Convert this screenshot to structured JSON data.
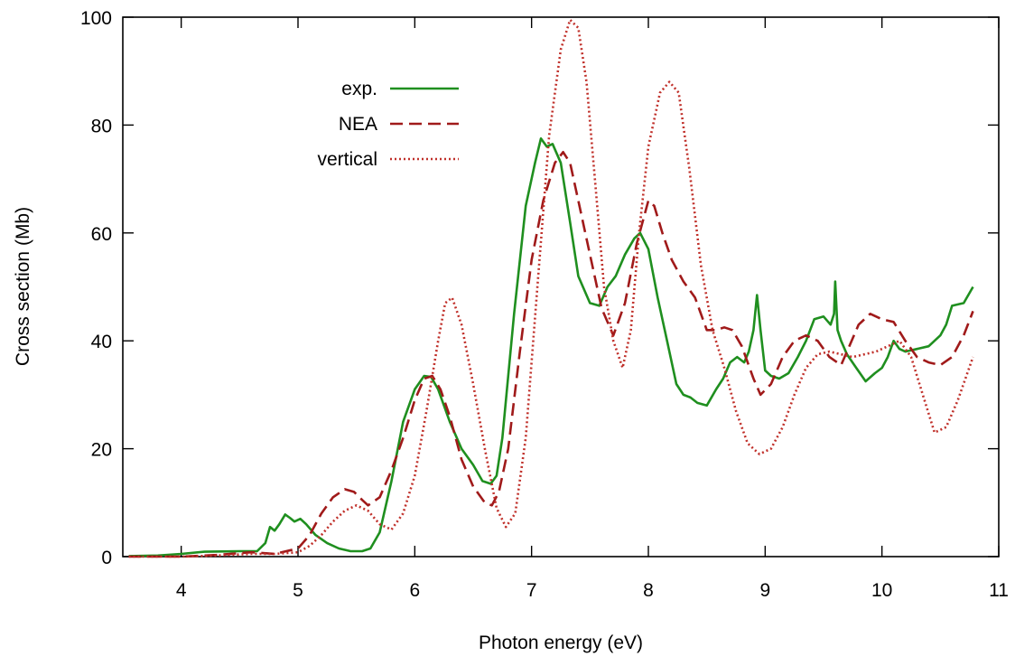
{
  "chart_data": {
    "type": "line",
    "title": "",
    "xlabel": "Photon energy (eV)",
    "ylabel": "Cross section (Mb)",
    "xlim": [
      3.5,
      11
    ],
    "ylim": [
      0,
      100
    ],
    "x_ticks": [
      "4",
      "5",
      "6",
      "7",
      "8",
      "9",
      "10",
      "11"
    ],
    "y_ticks": [
      "0",
      "20",
      "40",
      "60",
      "80",
      "100"
    ],
    "grid": false,
    "legend_position": "top-left",
    "series": [
      {
        "name": "exp.",
        "color": "#1f8f1f",
        "dash": "solid",
        "x": [
          3.55,
          3.8,
          4.0,
          4.2,
          4.5,
          4.65,
          4.72,
          4.76,
          4.8,
          4.84,
          4.89,
          4.93,
          4.97,
          5.02,
          5.07,
          5.15,
          5.25,
          5.35,
          5.45,
          5.55,
          5.62,
          5.7,
          5.8,
          5.9,
          6.0,
          6.08,
          6.14,
          6.2,
          6.3,
          6.4,
          6.5,
          6.58,
          6.65,
          6.7,
          6.75,
          6.85,
          6.95,
          7.03,
          7.08,
          7.13,
          7.18,
          7.25,
          7.33,
          7.4,
          7.5,
          7.58,
          7.65,
          7.72,
          7.8,
          7.88,
          7.93,
          8.0,
          8.08,
          8.16,
          8.24,
          8.3,
          8.36,
          8.42,
          8.5,
          8.58,
          8.64,
          8.7,
          8.76,
          8.82,
          8.86,
          8.9,
          8.93,
          8.96,
          9.0,
          9.05,
          9.12,
          9.2,
          9.28,
          9.35,
          9.42,
          9.5,
          9.56,
          9.59,
          9.6,
          9.62,
          9.65,
          9.7,
          9.78,
          9.86,
          9.94,
          10.0,
          10.05,
          10.1,
          10.15,
          10.2,
          10.3,
          10.4,
          10.5,
          10.55,
          10.6,
          10.7,
          10.78
        ],
        "y": [
          0.1,
          0.2,
          0.5,
          0.9,
          1.0,
          1.0,
          2.5,
          5.5,
          4.8,
          6.0,
          7.8,
          7.2,
          6.5,
          7.0,
          6.0,
          4.0,
          2.5,
          1.5,
          1.0,
          1.0,
          1.5,
          4.5,
          14.0,
          25.0,
          31.0,
          33.5,
          33.3,
          31.0,
          25.0,
          20.0,
          17.0,
          14.0,
          13.5,
          15.0,
          22.0,
          45.0,
          65.0,
          73.0,
          77.5,
          76.0,
          76.5,
          73.0,
          62.0,
          52.0,
          47.0,
          46.5,
          50.0,
          52.0,
          56.0,
          59.0,
          60.0,
          57.0,
          48.0,
          40.0,
          32.0,
          30.0,
          29.5,
          28.5,
          28.0,
          31.0,
          33.0,
          36.0,
          37.0,
          36.0,
          38.0,
          42.0,
          48.5,
          42.0,
          34.5,
          33.5,
          33.0,
          34.0,
          37.0,
          40.0,
          44.0,
          44.5,
          43.0,
          45.0,
          51.0,
          42.0,
          40.0,
          37.5,
          35.0,
          32.5,
          34.0,
          35.0,
          37.0,
          40.0,
          38.5,
          38.0,
          38.5,
          39.0,
          41.0,
          43.0,
          46.5,
          47.0,
          50.0
        ]
      },
      {
        "name": "NEA",
        "color": "#a01a1a",
        "dash": "long-dash",
        "x": [
          3.55,
          3.8,
          4.0,
          4.3,
          4.6,
          4.8,
          5.0,
          5.1,
          5.2,
          5.3,
          5.4,
          5.48,
          5.55,
          5.6,
          5.7,
          5.8,
          5.9,
          6.0,
          6.08,
          6.15,
          6.22,
          6.3,
          6.4,
          6.5,
          6.6,
          6.66,
          6.72,
          6.8,
          6.9,
          7.0,
          7.1,
          7.2,
          7.27,
          7.33,
          7.4,
          7.5,
          7.6,
          7.7,
          7.8,
          7.9,
          8.0,
          8.05,
          8.12,
          8.2,
          8.3,
          8.4,
          8.5,
          8.58,
          8.65,
          8.72,
          8.8,
          8.9,
          8.96,
          9.05,
          9.15,
          9.25,
          9.35,
          9.45,
          9.55,
          9.65,
          9.72,
          9.8,
          9.9,
          10.0,
          10.1,
          10.2,
          10.3,
          10.4,
          10.5,
          10.6,
          10.7,
          10.78
        ],
        "y": [
          0.0,
          0.0,
          0.0,
          0.3,
          0.8,
          0.5,
          1.5,
          4.0,
          8.0,
          11.0,
          12.5,
          12.0,
          10.5,
          9.5,
          11.0,
          16.0,
          22.0,
          29.0,
          33.0,
          33.5,
          31.0,
          26.0,
          18.0,
          13.0,
          10.0,
          9.5,
          12.0,
          20.0,
          38.0,
          55.0,
          66.0,
          73.0,
          75.0,
          73.0,
          66.0,
          56.0,
          46.0,
          41.0,
          47.0,
          58.0,
          66.0,
          65.0,
          60.0,
          55.0,
          51.0,
          48.0,
          42.0,
          42.0,
          42.5,
          42.0,
          39.0,
          33.0,
          30.0,
          32.0,
          37.0,
          40.0,
          41.0,
          40.0,
          37.0,
          35.5,
          39.0,
          43.0,
          45.0,
          44.0,
          43.5,
          40.0,
          37.0,
          36.0,
          35.5,
          37.0,
          41.0,
          45.5
        ]
      },
      {
        "name": "vertical",
        "color": "#c0302a",
        "dash": "dotted",
        "x": [
          3.55,
          3.8,
          4.0,
          4.3,
          4.6,
          4.8,
          5.0,
          5.1,
          5.2,
          5.3,
          5.4,
          5.5,
          5.6,
          5.7,
          5.8,
          5.9,
          6.0,
          6.1,
          6.2,
          6.26,
          6.32,
          6.4,
          6.5,
          6.6,
          6.7,
          6.78,
          6.86,
          6.95,
          7.05,
          7.15,
          7.25,
          7.33,
          7.4,
          7.47,
          7.55,
          7.62,
          7.7,
          7.78,
          7.85,
          7.92,
          8.0,
          8.1,
          8.18,
          8.26,
          8.35,
          8.45,
          8.55,
          8.65,
          8.75,
          8.85,
          8.95,
          9.05,
          9.15,
          9.25,
          9.35,
          9.45,
          9.55,
          9.65,
          9.75,
          9.85,
          9.95,
          10.05,
          10.15,
          10.25,
          10.35,
          10.45,
          10.55,
          10.65,
          10.78
        ],
        "y": [
          0.0,
          0.0,
          0.0,
          0.2,
          0.5,
          0.5,
          0.8,
          2.0,
          4.0,
          6.5,
          8.5,
          9.5,
          8.5,
          6.0,
          5.0,
          8.0,
          15.0,
          27.0,
          40.0,
          47.0,
          48.0,
          43.0,
          32.0,
          20.0,
          9.0,
          5.5,
          8.0,
          22.0,
          50.0,
          78.0,
          94.0,
          99.5,
          98.0,
          88.0,
          68.0,
          50.0,
          40.0,
          35.0,
          42.0,
          60.0,
          76.0,
          86.0,
          88.0,
          86.0,
          72.0,
          54.0,
          42.0,
          35.0,
          27.0,
          21.0,
          19.0,
          20.0,
          24.0,
          30.0,
          35.0,
          37.5,
          38.0,
          37.5,
          37.0,
          37.5,
          38.0,
          39.0,
          40.0,
          37.0,
          30.0,
          23.0,
          24.0,
          29.0,
          37.0
        ]
      }
    ]
  }
}
